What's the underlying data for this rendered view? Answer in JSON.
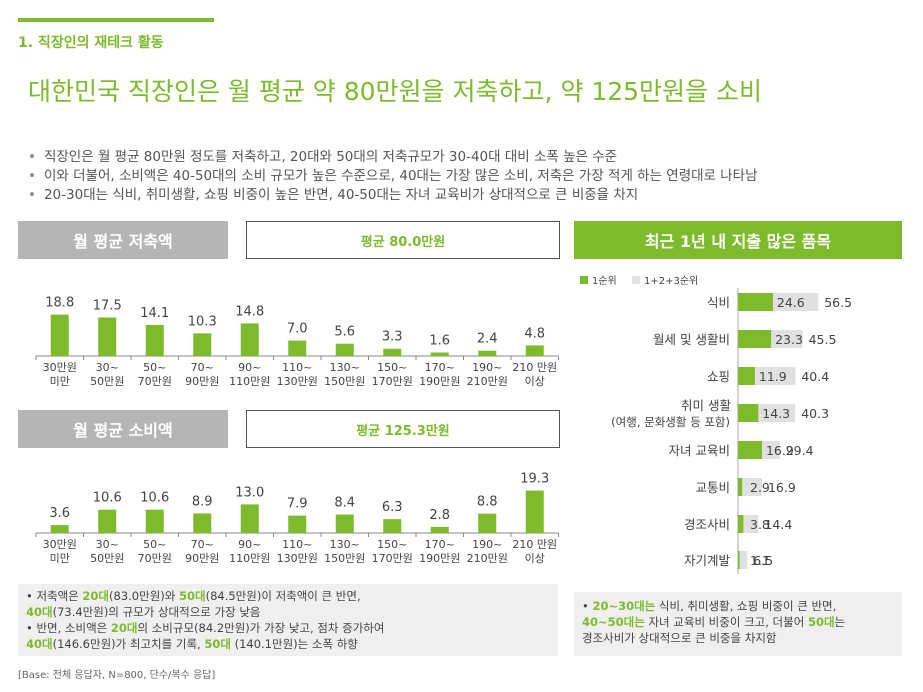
{
  "section_title": "1. 직장인의 재테크 활동",
  "headline": "대한민국 직장인은 월 평균 약 80만원을 저축하고, 약 125만원을 소비",
  "bullets": [
    "직장인은 월 평균 80만원 정도를 저축하고, 20대와 50대의 저축규모가 30-40대 대비 소폭 높은 수준",
    "이와 더불어, 소비액은 40-50대의 소비 규모가 높은 수준으로, 40대는 가장 많은 소비, 저축은 가장 적게 하는 연령대로 나타남",
    "20-30대는 식비, 취미생활, 쇼핑 비중이 높은 반면, 40-50대는 자녀 교육비가 상대적으로 큰 비중을 차지"
  ],
  "colors": {
    "accent": "#7dbb2d",
    "gray_bar": "#e0e0e0",
    "panel_gray": "#b5b5b5"
  },
  "panels": {
    "savings": {
      "title": "월 평균 저축액",
      "average": "평균 80.0만원"
    },
    "spending": {
      "title": "월 평균 소비액",
      "average": "평균 125.3만원"
    },
    "items": {
      "title": "최근 1년 내 지출 많은 품목"
    }
  },
  "chart_data": [
    {
      "type": "bar",
      "title": "월 평균 저축액",
      "categories": [
        "30만원\n미만",
        "30~\n50만원",
        "50~\n70만원",
        "70~\n90만원",
        "90~\n110만원",
        "110~\n130만원",
        "130~\n150만원",
        "150~\n170만원",
        "170~\n190만원",
        "190~\n210만원",
        "210 만원\n이상"
      ],
      "values": [
        18.8,
        17.5,
        14.1,
        10.3,
        14.8,
        7.0,
        5.6,
        3.3,
        1.6,
        2.4,
        4.8
      ],
      "value_labels": [
        "18.8",
        "17.5",
        "14.1",
        "10.3",
        "14.8",
        "7.0",
        "5.6",
        "3.3",
        "1.6",
        "2.4",
        "4.8"
      ]
    },
    {
      "type": "bar",
      "title": "월 평균 소비액",
      "categories": [
        "30만원\n미만",
        "30~\n50만원",
        "50~\n70만원",
        "70~\n90만원",
        "90~\n110만원",
        "110~\n130만원",
        "130~\n150만원",
        "150~\n170만원",
        "170~\n190만원",
        "190~\n210만원",
        "210 만원\n이상"
      ],
      "values": [
        3.6,
        10.6,
        10.6,
        8.9,
        13.0,
        7.9,
        8.4,
        6.3,
        2.8,
        8.8,
        19.3
      ],
      "value_labels": [
        "3.6",
        "10.6",
        "10.6",
        "8.9",
        "13.0",
        "7.9",
        "8.4",
        "6.3",
        "2.8",
        "8.8",
        "19.3"
      ]
    },
    {
      "type": "bar",
      "title": "최근 1년 내 지출 많은 품목",
      "orientation": "horizontal",
      "legend_position": "top-left",
      "categories": [
        "식비",
        "월세 및 생활비",
        "쇼핑",
        "취미 생활\n(여행, 문화생활 등 포함)",
        "자녀 교육비",
        "교통비",
        "경조사비",
        "자기계발"
      ],
      "series": [
        {
          "name": "1순위",
          "color": "#7dbb2d",
          "values": [
            24.6,
            23.3,
            11.9,
            14.3,
            16.9,
            2.9,
            3.8,
            1.1
          ],
          "labels": [
            "24.6",
            "23.3",
            "11.9",
            "14.3",
            "16.9",
            "2.9",
            "3.8",
            "1.1"
          ]
        },
        {
          "name": "1+2+3순위",
          "color": "#e0e0e0",
          "values": [
            56.5,
            45.5,
            40.4,
            40.3,
            29.4,
            16.9,
            14.4,
            6.5
          ],
          "labels": [
            "56.5",
            "45.5",
            "40.4",
            "40.3",
            "29.4",
            "16.9",
            "14.4",
            "6.5"
          ]
        }
      ]
    }
  ],
  "notes": {
    "left": [
      [
        {
          "t": "• 저축액은 "
        },
        {
          "t": "20대",
          "g": 1
        },
        {
          "t": "(83.0만원)와 "
        },
        {
          "t": "50대",
          "g": 1
        },
        {
          "t": "(84.5만원)이 저축액이 큰 반면,"
        }
      ],
      [
        {
          "t": "   "
        },
        {
          "t": "40대",
          "g": 1
        },
        {
          "t": "(73.4만원)의 규모가 상대적으로 가장 낮음"
        }
      ],
      [
        {
          "t": "• 반면, 소비액은 "
        },
        {
          "t": "20대",
          "g": 1
        },
        {
          "t": "의 소비규모(84.2만원)가 가장 낮고, 점차 증가하여"
        }
      ],
      [
        {
          "t": "   "
        },
        {
          "t": "40대",
          "g": 1
        },
        {
          "t": "(146.6만원)가 최고치를 기록, "
        },
        {
          "t": "50대",
          "g": 1
        },
        {
          "t": " (140.1만원)는 소폭 하향"
        }
      ]
    ],
    "right": [
      [
        {
          "t": "• "
        },
        {
          "t": "20~30대는",
          "g": 1
        },
        {
          "t": " 식비, 취미생활, 쇼핑 비중이 큰 반면,"
        }
      ],
      [
        {
          "t": "   "
        },
        {
          "t": "40~50대는",
          "g": 1
        },
        {
          "t": " 자녀 교육비 비중이 크고, 더불어 "
        },
        {
          "t": "50대",
          "g": 1
        },
        {
          "t": "는"
        }
      ],
      [
        {
          "t": "   경조사비가 상대적으로 큰 비중을 차지함"
        }
      ]
    ]
  },
  "base_note": "[Base: 전체 응답자, N=800, 단수/복수 응답]"
}
